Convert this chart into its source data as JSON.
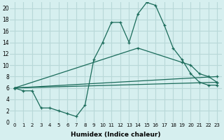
{
  "xlabel": "Humidex (Indice chaleur)",
  "xlim": [
    -0.5,
    23.5
  ],
  "ylim": [
    0,
    21
  ],
  "xticks": [
    0,
    1,
    2,
    3,
    4,
    5,
    6,
    7,
    8,
    9,
    10,
    11,
    12,
    13,
    14,
    15,
    16,
    17,
    18,
    19,
    20,
    21,
    22,
    23
  ],
  "yticks": [
    0,
    2,
    4,
    6,
    8,
    10,
    12,
    14,
    16,
    18,
    20
  ],
  "background_color": "#d6efef",
  "grid_color": "#b8d8d8",
  "line_color": "#1a6b5a",
  "line1_x": [
    0,
    1,
    2,
    3,
    4,
    5,
    6,
    7,
    8,
    9,
    10,
    11,
    12,
    13,
    14,
    15,
    16,
    17,
    18,
    19,
    20,
    21,
    22,
    23
  ],
  "line1_y": [
    6,
    5.5,
    5.5,
    2.5,
    2.5,
    2,
    1.5,
    1,
    3,
    11,
    14,
    17.5,
    17.5,
    14,
    19,
    21,
    20.5,
    17,
    13,
    11,
    8.5,
    7,
    6.5,
    6.5
  ],
  "line2_x": [
    0,
    23
  ],
  "line2_y": [
    6,
    7
  ],
  "line3_x": [
    0,
    23
  ],
  "line3_y": [
    6,
    8
  ],
  "line4_x": [
    0,
    14,
    19,
    20,
    21,
    22,
    23
  ],
  "line4_y": [
    6,
    13,
    10.5,
    10,
    8.5,
    8,
    7
  ]
}
